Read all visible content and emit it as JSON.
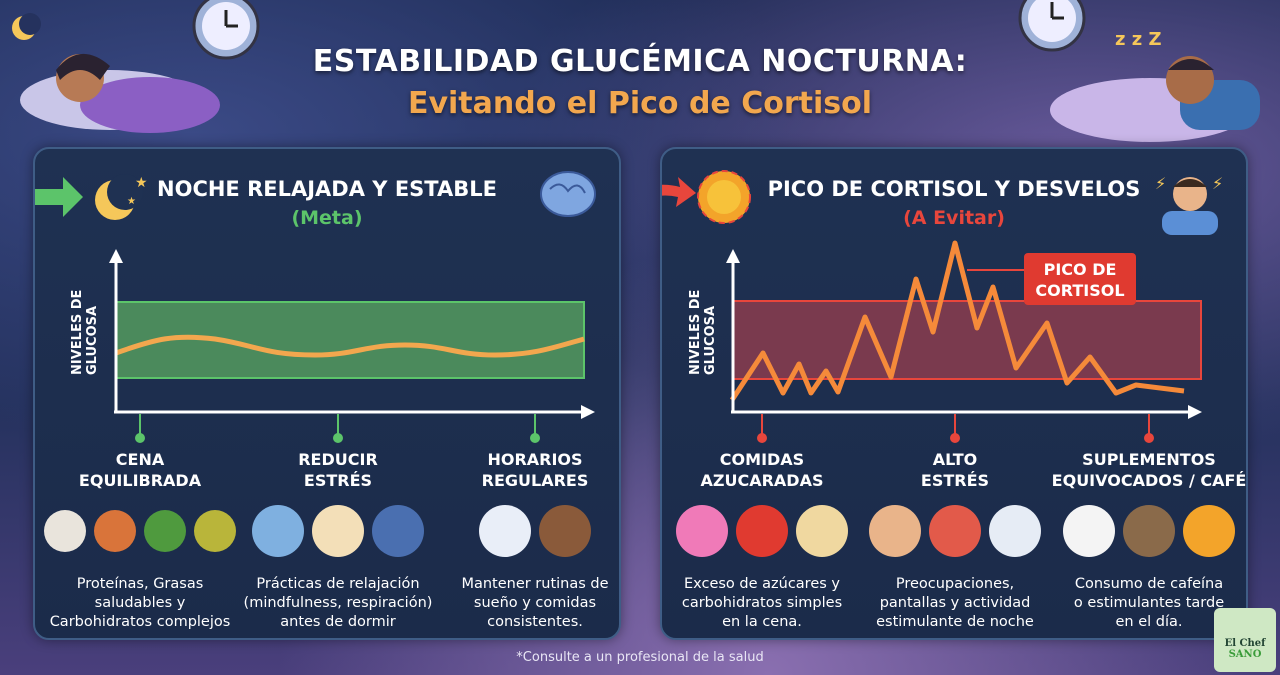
{
  "title": {
    "line1": "ESTABILIDAD GLUCÉMICA NOCTURNA:",
    "line2": "Evitando el Pico de Cortisol"
  },
  "left": {
    "heading": "NOCHE RELAJADA Y ESTABLE",
    "subheading": "(Meta)",
    "y_label": [
      "NIVELES DE",
      "GLUCOSA"
    ],
    "accent": "#5cc46a",
    "columns": [
      {
        "title": [
          "CENA",
          "EQUILIBRADA"
        ],
        "icons": [
          "chicken-plate-icon",
          "sweet-potato-icon",
          "vegetables-icon",
          "olive-oil-icon"
        ],
        "text": [
          "Proteínas, Grasas",
          "saludables y",
          "Carbohidratos complejos"
        ]
      },
      {
        "title": [
          "REDUCIR",
          "ESTRÉS"
        ],
        "icons": [
          "meditation-icon",
          "candles-icon",
          "book-icon"
        ],
        "text": [
          "Prácticas de relajación",
          "(mindfulness, respiración)",
          "antes de dormir"
        ]
      },
      {
        "title": [
          "HORARIOS",
          "REGULARES"
        ],
        "icons": [
          "clock-icon",
          "sleeping-bed-icon"
        ],
        "text": [
          "Mantener rutinas de",
          "sueño y comidas",
          "consistentes."
        ]
      }
    ]
  },
  "right": {
    "heading": "PICO DE CORTISOL Y DESVELOS",
    "subheading": "(A Evitar)",
    "y_label": [
      "NIVELES DE",
      "GLUCOSA"
    ],
    "callout": [
      "PICO DE",
      "CORTISOL"
    ],
    "accent": "#e8463c",
    "columns": [
      {
        "title": [
          "COMIDAS",
          "AZUCARADAS"
        ],
        "icons": [
          "donut-icon",
          "soda-cup-icon",
          "bread-icon"
        ],
        "text": [
          "Exceso de azúcares y",
          "carbohidratos simples",
          "en la cena."
        ]
      },
      {
        "title": [
          "ALTO",
          "ESTRÉS"
        ],
        "icons": [
          "stressed-person-icon",
          "calendar-clock-icon",
          "news-icon"
        ],
        "text": [
          "Preocupaciones,",
          "pantallas y actividad",
          "estimulante de noche"
        ]
      },
      {
        "title": [
          "SUPLEMENTOS",
          "EQUIVOCADOS / CAFÉ"
        ],
        "icons": [
          "coffee-cup-icon",
          "coffee-jar-icon",
          "supplement-bottle-icon"
        ],
        "text": [
          "Consumo de cafeína",
          "o estimulantes tarde",
          "en el día."
        ]
      }
    ]
  },
  "footnote": "*Consulte a un profesional de la salud",
  "logo": {
    "line1": "El Chef",
    "line2": "SANO"
  }
}
